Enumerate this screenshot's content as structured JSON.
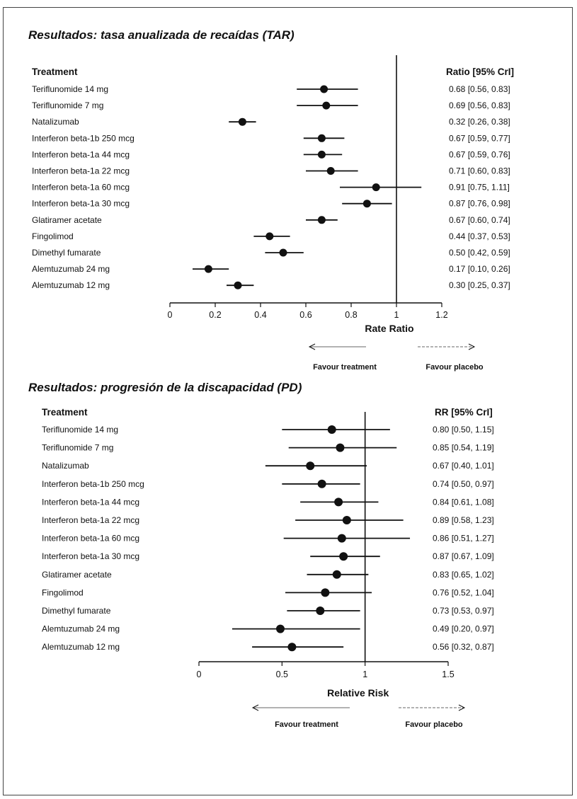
{
  "colors": {
    "ink": "#111111",
    "frame": "#444444",
    "arrow": "#666666"
  },
  "chart_data": [
    {
      "type": "forest",
      "title": "Resultados: tasa anualizada de recaídas (TAR)",
      "row_header": "Treatment",
      "value_header": "Ratio [95% CrI]",
      "xlabel": "Rate Ratio",
      "xlim": [
        0,
        1.2
      ],
      "ticks": [
        0,
        0.2,
        0.4,
        0.6,
        0.8,
        1,
        1.2
      ],
      "tick_labels": [
        "0",
        "0.2",
        "0.4",
        "0.6",
        "0.8",
        "1",
        "1.2"
      ],
      "reference_line": 1,
      "favour_left": "Favour treatment",
      "favour_right": "Favour placebo",
      "rows": [
        {
          "treatment": "Teriflunomide 14 mg",
          "estimate": 0.68,
          "lower": 0.56,
          "upper": 0.83,
          "text": "0.68 [0.56, 0.83]"
        },
        {
          "treatment": "Teriflunomide 7 mg",
          "estimate": 0.69,
          "lower": 0.56,
          "upper": 0.83,
          "text": "0.69 [0.56, 0.83]"
        },
        {
          "treatment": "Natalizumab",
          "estimate": 0.32,
          "lower": 0.26,
          "upper": 0.38,
          "text": "0.32 [0.26, 0.38]"
        },
        {
          "treatment": "Interferon beta-1b 250 mcg",
          "estimate": 0.67,
          "lower": 0.59,
          "upper": 0.77,
          "text": "0.67 [0.59, 0.77]"
        },
        {
          "treatment": "Interferon beta-1a 44 mcg",
          "estimate": 0.67,
          "lower": 0.59,
          "upper": 0.76,
          "text": "0.67 [0.59, 0.76]"
        },
        {
          "treatment": "Interferon beta-1a 22 mcg",
          "estimate": 0.71,
          "lower": 0.6,
          "upper": 0.83,
          "text": "0.71 [0.60, 0.83]"
        },
        {
          "treatment": "Interferon beta-1a 60 mcg",
          "estimate": 0.91,
          "lower": 0.75,
          "upper": 1.11,
          "text": "0.91 [0.75, 1.11]"
        },
        {
          "treatment": "Interferon beta-1a 30 mcg",
          "estimate": 0.87,
          "lower": 0.76,
          "upper": 0.98,
          "text": "0.87 [0.76, 0.98]"
        },
        {
          "treatment": "Glatiramer acetate",
          "estimate": 0.67,
          "lower": 0.6,
          "upper": 0.74,
          "text": "0.67 [0.60, 0.74]"
        },
        {
          "treatment": "Fingolimod",
          "estimate": 0.44,
          "lower": 0.37,
          "upper": 0.53,
          "text": "0.44 [0.37, 0.53]"
        },
        {
          "treatment": "Dimethyl fumarate",
          "estimate": 0.5,
          "lower": 0.42,
          "upper": 0.59,
          "text": "0.50 [0.42, 0.59]"
        },
        {
          "treatment": "Alemtuzumab 24 mg",
          "estimate": 0.17,
          "lower": 0.1,
          "upper": 0.26,
          "text": "0.17 [0.10, 0.26]"
        },
        {
          "treatment": "Alemtuzumab 12 mg",
          "estimate": 0.3,
          "lower": 0.25,
          "upper": 0.37,
          "text": "0.30 [0.25, 0.37]"
        }
      ]
    },
    {
      "type": "forest",
      "title": "Resultados: progresión de la discapacidad (PD)",
      "row_header": "Treatment",
      "value_header": "RR [95% CrI]",
      "xlabel": "Relative Risk",
      "xlim": [
        0,
        1.5
      ],
      "ticks": [
        0,
        0.5,
        1,
        1.5
      ],
      "tick_labels": [
        "0",
        "0.5",
        "1",
        "1.5"
      ],
      "reference_line": 1,
      "favour_left": "Favour treatment",
      "favour_right": "Favour placebo",
      "rows": [
        {
          "treatment": "Teriflunomide 14 mg",
          "estimate": 0.8,
          "lower": 0.5,
          "upper": 1.15,
          "text": "0.80 [0.50, 1.15]"
        },
        {
          "treatment": "Teriflunomide 7 mg",
          "estimate": 0.85,
          "lower": 0.54,
          "upper": 1.19,
          "text": "0.85 [0.54, 1.19]"
        },
        {
          "treatment": "Natalizumab",
          "estimate": 0.67,
          "lower": 0.4,
          "upper": 1.01,
          "text": "0.67 [0.40, 1.01]"
        },
        {
          "treatment": "Interferon beta-1b 250 mcg",
          "estimate": 0.74,
          "lower": 0.5,
          "upper": 0.97,
          "text": "0.74 [0.50, 0.97]"
        },
        {
          "treatment": "Interferon beta-1a 44 mcg",
          "estimate": 0.84,
          "lower": 0.61,
          "upper": 1.08,
          "text": "0.84 [0.61, 1.08]"
        },
        {
          "treatment": "Interferon beta-1a 22 mcg",
          "estimate": 0.89,
          "lower": 0.58,
          "upper": 1.23,
          "text": "0.89 [0.58, 1.23]"
        },
        {
          "treatment": "Interferon beta-1a 60 mcg",
          "estimate": 0.86,
          "lower": 0.51,
          "upper": 1.27,
          "text": "0.86 [0.51, 1.27]"
        },
        {
          "treatment": "Interferon beta-1a 30 mcg",
          "estimate": 0.87,
          "lower": 0.67,
          "upper": 1.09,
          "text": "0.87 [0.67, 1.09]"
        },
        {
          "treatment": "Glatiramer acetate",
          "estimate": 0.83,
          "lower": 0.65,
          "upper": 1.02,
          "text": "0.83 [0.65, 1.02]"
        },
        {
          "treatment": "Fingolimod",
          "estimate": 0.76,
          "lower": 0.52,
          "upper": 1.04,
          "text": "0.76 [0.52, 1.04]"
        },
        {
          "treatment": "Dimethyl fumarate",
          "estimate": 0.73,
          "lower": 0.53,
          "upper": 0.97,
          "text": "0.73 [0.53, 0.97]"
        },
        {
          "treatment": "Alemtuzumab 24 mg",
          "estimate": 0.49,
          "lower": 0.2,
          "upper": 0.97,
          "text": "0.49 [0.20, 0.97]"
        },
        {
          "treatment": "Alemtuzumab 12 mg",
          "estimate": 0.56,
          "lower": 0.32,
          "upper": 0.87,
          "text": "0.56 [0.32, 0.87]"
        }
      ]
    }
  ]
}
